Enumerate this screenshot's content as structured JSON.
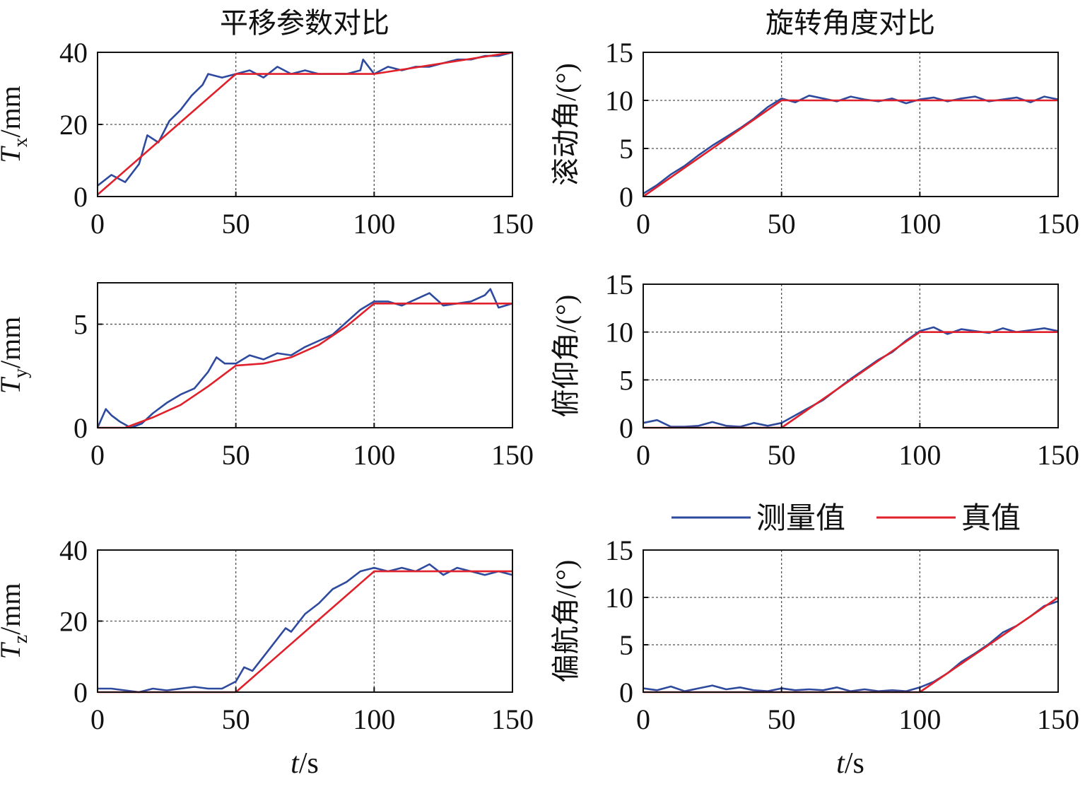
{
  "titles": {
    "left": "平移参数对比",
    "right": "旋转角度对比"
  },
  "legend": {
    "measured": "测量值",
    "truth": "真值",
    "measured_color": "#2E4A9E",
    "truth_color": "#E0202A"
  },
  "xlabel": {
    "italic": "t",
    "unit": "/s"
  },
  "chart_data": [
    {
      "type": "line",
      "id": "tx",
      "ylabel": {
        "sym": "T",
        "sub": "x",
        "unit": "/mm"
      },
      "xlim": [
        0,
        150
      ],
      "ylim": [
        0,
        40
      ],
      "yticks": [
        0,
        20,
        40
      ],
      "xticks": [
        0,
        50,
        100,
        150
      ],
      "grid": true,
      "series": [
        {
          "name": "真值",
          "x": [
            0,
            50,
            100,
            150
          ],
          "values": [
            0.5,
            34,
            34,
            40
          ]
        },
        {
          "name": "测量值",
          "x": [
            0,
            5,
            10,
            15,
            18,
            22,
            26,
            30,
            34,
            38,
            40,
            45,
            50,
            55,
            60,
            65,
            70,
            75,
            80,
            85,
            90,
            95,
            96,
            100,
            105,
            110,
            115,
            120,
            125,
            130,
            135,
            140,
            145,
            150
          ],
          "values": [
            3,
            6,
            4,
            9,
            17,
            15,
            21,
            24,
            28,
            31,
            34,
            33,
            34,
            35,
            33,
            36,
            34,
            35,
            34,
            34,
            34,
            35,
            38,
            34,
            36,
            35,
            36,
            36,
            37,
            38,
            38,
            39,
            39,
            40
          ]
        }
      ]
    },
    {
      "type": "line",
      "id": "roll",
      "ylabel": {
        "text": "滚动角/(°)"
      },
      "xlim": [
        0,
        150
      ],
      "ylim": [
        0,
        15
      ],
      "yticks": [
        0,
        5,
        10,
        15
      ],
      "xticks": [
        0,
        50,
        100,
        150
      ],
      "grid": true,
      "series": [
        {
          "name": "真值",
          "x": [
            0,
            50,
            150
          ],
          "values": [
            0,
            10,
            10
          ]
        },
        {
          "name": "测量值",
          "x": [
            0,
            5,
            10,
            15,
            20,
            25,
            30,
            35,
            40,
            45,
            50,
            55,
            60,
            65,
            70,
            75,
            80,
            85,
            90,
            95,
            100,
            105,
            110,
            115,
            120,
            125,
            130,
            135,
            140,
            145,
            150
          ],
          "values": [
            0.3,
            1.2,
            2.3,
            3.2,
            4.3,
            5.3,
            6.2,
            7.1,
            8.1,
            9.3,
            10.2,
            9.8,
            10.5,
            10.2,
            9.9,
            10.4,
            10.1,
            9.9,
            10.2,
            9.7,
            10.1,
            10.3,
            9.9,
            10.2,
            10.4,
            9.9,
            10.1,
            10.3,
            9.8,
            10.4,
            10.1
          ]
        }
      ]
    },
    {
      "type": "line",
      "id": "ty",
      "ylabel": {
        "sym": "T",
        "sub": "y",
        "unit": "/mm"
      },
      "xlim": [
        0,
        150
      ],
      "ylim": [
        0,
        7
      ],
      "yticks": [
        0,
        5
      ],
      "xticks": [
        0,
        50,
        100,
        150
      ],
      "grid": true,
      "series": [
        {
          "name": "真值",
          "x": [
            0,
            10,
            20,
            30,
            40,
            50,
            60,
            70,
            80,
            90,
            100,
            150
          ],
          "values": [
            0,
            0,
            0.5,
            1.1,
            2.0,
            3.0,
            3.1,
            3.4,
            4.0,
            4.9,
            6.0,
            6.0
          ]
        },
        {
          "name": "测量值",
          "x": [
            0,
            3,
            5,
            8,
            12,
            16,
            20,
            25,
            30,
            35,
            40,
            43,
            46,
            50,
            55,
            60,
            65,
            70,
            75,
            80,
            85,
            90,
            95,
            100,
            105,
            110,
            115,
            120,
            125,
            130,
            135,
            140,
            142,
            145,
            150
          ],
          "values": [
            0,
            0.9,
            0.6,
            0.3,
            0,
            0.2,
            0.7,
            1.2,
            1.6,
            1.9,
            2.7,
            3.4,
            3.1,
            3.1,
            3.5,
            3.3,
            3.6,
            3.5,
            3.9,
            4.2,
            4.5,
            5.1,
            5.7,
            6.1,
            6.1,
            5.9,
            6.2,
            6.5,
            5.9,
            6.0,
            6.1,
            6.4,
            6.7,
            5.8,
            6.0
          ]
        }
      ]
    },
    {
      "type": "line",
      "id": "pitch",
      "ylabel": {
        "text": "俯仰角/(°)"
      },
      "xlim": [
        0,
        150
      ],
      "ylim": [
        0,
        15
      ],
      "yticks": [
        0,
        5,
        10,
        15
      ],
      "xticks": [
        0,
        50,
        100,
        150
      ],
      "grid": true,
      "series": [
        {
          "name": "真值",
          "x": [
            0,
            50,
            100,
            150
          ],
          "values": [
            0,
            0,
            10,
            10
          ]
        },
        {
          "name": "测量值",
          "x": [
            0,
            5,
            10,
            15,
            20,
            25,
            30,
            35,
            40,
            45,
            50,
            55,
            60,
            65,
            70,
            75,
            80,
            85,
            90,
            95,
            100,
            105,
            110,
            115,
            120,
            125,
            130,
            135,
            140,
            145,
            150
          ],
          "values": [
            0.5,
            0.8,
            0.1,
            0.1,
            0.2,
            0.6,
            0.2,
            0.1,
            0.5,
            0.2,
            0.5,
            1.3,
            2.1,
            2.9,
            4.0,
            5.1,
            6.1,
            7.1,
            7.9,
            9.1,
            10.1,
            10.5,
            9.8,
            10.3,
            10.1,
            9.9,
            10.4,
            10.0,
            10.2,
            10.4,
            10.1
          ]
        }
      ]
    },
    {
      "type": "line",
      "id": "tz",
      "ylabel": {
        "sym": "T",
        "sub": "z",
        "unit": "/mm"
      },
      "xlim": [
        0,
        150
      ],
      "ylim": [
        0,
        40
      ],
      "yticks": [
        0,
        20,
        40
      ],
      "xticks": [
        0,
        50,
        100,
        150
      ],
      "grid": true,
      "series": [
        {
          "name": "真值",
          "x": [
            0,
            50,
            100,
            150
          ],
          "values": [
            0,
            0,
            34,
            34
          ]
        },
        {
          "name": "测量值",
          "x": [
            0,
            5,
            10,
            15,
            20,
            25,
            30,
            35,
            40,
            45,
            50,
            53,
            56,
            60,
            65,
            68,
            70,
            75,
            80,
            85,
            90,
            95,
            100,
            105,
            110,
            115,
            120,
            125,
            130,
            135,
            140,
            145,
            150
          ],
          "values": [
            1,
            1,
            0.5,
            0,
            1,
            0.5,
            1,
            1.5,
            1,
            1,
            3,
            7,
            6,
            10,
            15,
            18,
            17,
            22,
            25,
            29,
            31,
            34,
            35,
            34,
            35,
            34,
            36,
            33,
            35,
            34,
            33,
            34,
            33
          ]
        }
      ]
    },
    {
      "type": "line",
      "id": "yaw",
      "ylabel": {
        "text": "偏航角/(°)"
      },
      "xlim": [
        0,
        150
      ],
      "ylim": [
        0,
        15
      ],
      "yticks": [
        0,
        5,
        10,
        15
      ],
      "xticks": [
        0,
        50,
        100,
        150
      ],
      "grid": true,
      "series": [
        {
          "name": "真值",
          "x": [
            0,
            100,
            150
          ],
          "values": [
            0,
            0,
            10
          ]
        },
        {
          "name": "测量值",
          "x": [
            0,
            5,
            10,
            15,
            20,
            25,
            30,
            35,
            40,
            45,
            50,
            55,
            60,
            65,
            70,
            75,
            80,
            85,
            90,
            95,
            100,
            105,
            110,
            115,
            120,
            125,
            130,
            135,
            140,
            145,
            150
          ],
          "values": [
            0.4,
            0.2,
            0.6,
            0.1,
            0.4,
            0.7,
            0.3,
            0.5,
            0.2,
            0.1,
            0.4,
            0.2,
            0.3,
            0.2,
            0.5,
            0.1,
            0.3,
            0.1,
            0.2,
            0.1,
            0.5,
            1.1,
            2.0,
            3.2,
            4.1,
            5.1,
            6.3,
            7.0,
            8.0,
            9.1,
            9.6
          ]
        }
      ]
    }
  ]
}
